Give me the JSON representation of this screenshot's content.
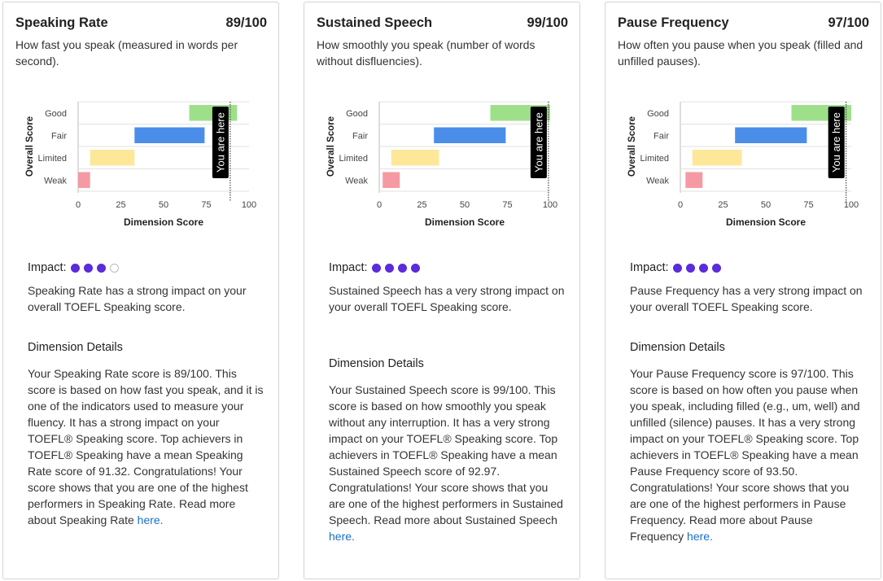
{
  "colors": {
    "good": "#9ee08a",
    "fair": "#4a8eea",
    "limited": "#fde89a",
    "weak": "#f59aa2",
    "impact_dot": "#5b2bdc",
    "link": "#1a6ec7"
  },
  "cards": [
    {
      "title": "Speaking Rate",
      "score": "89/100",
      "description": "How fast you speak (measured in words per second).",
      "impact_label": "Impact:",
      "impact_level": 3,
      "impact_text": "Speaking Rate has a strong impact on your overall TOEFL Speaking score.",
      "details_heading": "Dimension Details",
      "details_text": "Your Speaking Rate score is 89/100. This score is based on how fast you speak, and it is one of the indicators used to measure your fluency. It has a strong impact on your TOEFL® Speaking score. Top achievers in TOEFL® Speaking have a mean Speaking Rate score of 91.32. Congratulations! Your score shows that you are one of the highest performers in Speaking Rate. Read more about Speaking Rate",
      "link_text": "here.",
      "chart_data": {
        "type": "bar",
        "orientation": "horizontal-range",
        "xlabel": "Dimension Score",
        "ylabel": "Overall Score",
        "xlim": [
          0,
          100
        ],
        "xticks": [
          "0",
          "25",
          "50",
          "75",
          "100"
        ],
        "categories": [
          "Good",
          "Fair",
          "Limited",
          "Weak"
        ],
        "ranges": [
          [
            65,
            93
          ],
          [
            33,
            74
          ],
          [
            7,
            33
          ],
          [
            0,
            7
          ]
        ],
        "marker_value": 89,
        "marker_label": "You are here"
      }
    },
    {
      "title": "Sustained Speech",
      "score": "99/100",
      "description": "How smoothly you speak (number of words without disfluencies).",
      "impact_label": "Impact:",
      "impact_level": 4,
      "impact_text": "Sustained Speech has a very strong impact on your overall TOEFL Speaking score.",
      "details_heading": "Dimension Details",
      "details_text": "Your Sustained Speech score is 99/100. This score is based on how smoothly you speak without any interruption. It has a very strong impact on your TOEFL® Speaking score. Top achievers in TOEFL® Speaking have a mean Sustained Speech score of 92.97. Congratulations! Your score shows that you are one of the highest performers in Sustained Speech. Read more about Sustained Speech",
      "link_text": "here.",
      "chart_data": {
        "type": "bar",
        "orientation": "horizontal-range",
        "xlabel": "Dimension Score",
        "ylabel": "Overall Score",
        "xlim": [
          0,
          100
        ],
        "xticks": [
          "0",
          "25",
          "50",
          "75",
          "100"
        ],
        "categories": [
          "Good",
          "Fair",
          "Limited",
          "Weak"
        ],
        "ranges": [
          [
            65,
            100
          ],
          [
            32,
            74
          ],
          [
            7,
            35
          ],
          [
            2,
            12
          ]
        ],
        "marker_value": 99,
        "marker_label": "You are here"
      }
    },
    {
      "title": "Pause Frequency",
      "score": "97/100",
      "description": "How often you pause when you speak (filled and unfilled pauses).",
      "impact_label": "Impact:",
      "impact_level": 4,
      "impact_text": "Pause Frequency has a very strong impact on your overall TOEFL Speaking score.",
      "details_heading": "Dimension Details",
      "details_text": "Your Pause Frequency score is 97/100. This score is based on how often you pause when you speak, including filled (e.g., um, well) and unfilled (silence) pauses. It has a very strong impact on your TOEFL® Speaking score. Top achievers in TOEFL® Speaking have a mean Pause Frequency score of 93.50. Congratulations! Your score shows that you are one of the highest performers in Pause Frequency. Read more about Pause Frequency",
      "link_text": "here.",
      "chart_data": {
        "type": "bar",
        "orientation": "horizontal-range",
        "xlabel": "Dimension Score",
        "ylabel": "Overall Score",
        "xlim": [
          0,
          100
        ],
        "xticks": [
          "0",
          "25",
          "50",
          "75",
          "100"
        ],
        "categories": [
          "Good",
          "Fair",
          "Limited",
          "Weak"
        ],
        "ranges": [
          [
            65,
            100
          ],
          [
            32,
            74
          ],
          [
            7,
            36
          ],
          [
            3,
            13
          ]
        ],
        "marker_value": 97,
        "marker_label": "You are here"
      }
    }
  ]
}
